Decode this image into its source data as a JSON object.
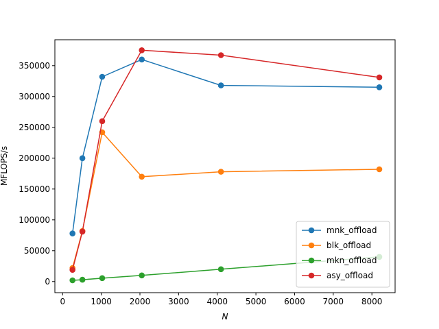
{
  "chart_data": {
    "type": "line",
    "title": "",
    "xlabel": "N",
    "ylabel": "MFLOPS/s",
    "xlim": [
      -200,
      8600
    ],
    "ylim": [
      -18000,
      392000
    ],
    "xticks": [
      0,
      1000,
      2000,
      3000,
      4000,
      5000,
      6000,
      7000,
      8000
    ],
    "xtick_labels": [
      "0",
      "1000",
      "2000",
      "3000",
      "4000",
      "5000",
      "6000",
      "7000",
      "8000"
    ],
    "yticks": [
      0,
      50000,
      100000,
      150000,
      200000,
      250000,
      300000,
      350000
    ],
    "ytick_labels": [
      "0",
      "50000",
      "100000",
      "150000",
      "200000",
      "250000",
      "300000",
      "350000"
    ],
    "grid": false,
    "legend_position": "lower-right",
    "x": [
      256,
      512,
      1024,
      2048,
      4096,
      8192
    ],
    "series": [
      {
        "name": "mnk_offload",
        "color": "#1f77b4",
        "values": [
          78000,
          200000,
          332000,
          360000,
          318000,
          315000
        ]
      },
      {
        "name": "blk_offload",
        "color": "#ff7f0e",
        "values": [
          22000,
          82000,
          242000,
          170000,
          178000,
          182000
        ]
      },
      {
        "name": "mkn_offload",
        "color": "#2ca02c",
        "values": [
          2000,
          3000,
          5500,
          10000,
          20000,
          40000
        ]
      },
      {
        "name": "asy_offload",
        "color": "#d62728",
        "values": [
          19000,
          81000,
          260000,
          375000,
          367000,
          331000
        ]
      }
    ]
  }
}
